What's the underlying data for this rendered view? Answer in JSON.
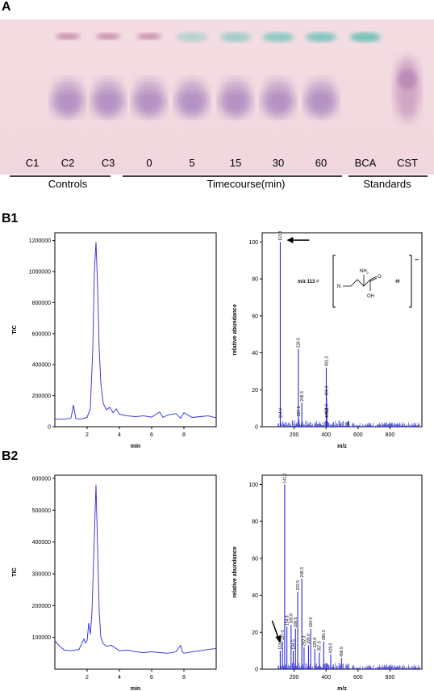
{
  "figure": {
    "panel_a": {
      "label": "A",
      "lanes": [
        "C1",
        "C2",
        "C3",
        "0",
        "5",
        "15",
        "30",
        "60",
        "BCA",
        "CST"
      ],
      "groups": [
        "Controls",
        "Timecourse(min)",
        "Standards"
      ]
    },
    "panel_b1": {
      "label": "B1"
    },
    "panel_b2": {
      "label": "B2"
    }
  },
  "chart_data": [
    {
      "type": "line",
      "panel": "B1",
      "xlabel": "min",
      "ylabel": "TIC",
      "xlim": [
        0,
        10
      ],
      "ylim": [
        0,
        1250000
      ],
      "xticks": [
        "2",
        "4",
        "6",
        "8"
      ],
      "yticks": [
        "0",
        "200000",
        "400000",
        "600000",
        "800000",
        "1000000",
        "1200000"
      ],
      "x": [
        0,
        0.5,
        1.0,
        1.15,
        1.3,
        1.6,
        2.0,
        2.2,
        2.35,
        2.45,
        2.55,
        2.65,
        2.75,
        2.85,
        3.0,
        3.2,
        3.4,
        3.6,
        3.8,
        4.0,
        4.5,
        5.0,
        5.5,
        6.0,
        6.5,
        6.7,
        7.0,
        7.5,
        7.8,
        8.0,
        8.5,
        9.0,
        9.5,
        10.0
      ],
      "y": [
        50000,
        48000,
        55000,
        140000,
        52000,
        50000,
        60000,
        120000,
        500000,
        1000000,
        1190000,
        900000,
        500000,
        280000,
        150000,
        110000,
        125000,
        90000,
        115000,
        80000,
        70000,
        65000,
        70000,
        62000,
        95000,
        60000,
        75000,
        85000,
        55000,
        90000,
        60000,
        65000,
        70000,
        58000
      ]
    },
    {
      "type": "bar",
      "panel": "B1",
      "xlabel": "m/z",
      "ylabel": "relative abundance",
      "xlim": [
        0,
        1000
      ],
      "ylim": [
        0,
        105
      ],
      "xticks": [
        "200",
        "400",
        "600",
        "800"
      ],
      "yticks": [
        "0",
        "20",
        "40",
        "60",
        "80",
        "100"
      ],
      "peaks": [
        {
          "mz": 113.3,
          "value": 100,
          "label": "113.3"
        },
        {
          "mz": 114.0,
          "value": 4,
          "label": "114.0"
        },
        {
          "mz": 226.5,
          "value": 42,
          "label": "226.5"
        },
        {
          "mz": 227.5,
          "value": 5,
          "label": "227.5"
        },
        {
          "mz": 248.3,
          "value": 13,
          "label": "248.3"
        },
        {
          "mz": 401.3,
          "value": 32,
          "label": "401.3"
        },
        {
          "mz": 402.3,
          "value": 6,
          "label": "402.3"
        },
        {
          "mz": 403.3,
          "value": 16,
          "label": "403.3"
        },
        {
          "mz": 405.3,
          "value": 4,
          "label": "405.3"
        },
        {
          "mz": 540,
          "value": 3,
          "label": ""
        }
      ],
      "annotation": {
        "text": "m/z 113 =",
        "formula_h": "-H",
        "n_label": "N",
        "nh2_label": "NH",
        "nh2_sub": "2",
        "oh_label": "OH",
        "o_label": "O",
        "charge": "–"
      }
    },
    {
      "type": "line",
      "panel": "B2",
      "xlabel": "min",
      "ylabel": "TIC",
      "xlim": [
        0,
        10
      ],
      "ylim": [
        0,
        610000
      ],
      "xticks": [
        "2",
        "4",
        "6",
        "8"
      ],
      "yticks": [
        "100000",
        "200000",
        "300000",
        "400000",
        "500000",
        "600000"
      ],
      "x": [
        0,
        0.3,
        0.6,
        1.0,
        1.5,
        1.8,
        1.9,
        2.0,
        2.1,
        2.2,
        2.3,
        2.45,
        2.55,
        2.65,
        2.75,
        2.85,
        3.0,
        3.2,
        3.5,
        4.0,
        4.5,
        5.0,
        5.5,
        6.0,
        6.5,
        7.0,
        7.5,
        7.8,
        7.9,
        8.0,
        8.5,
        9.0,
        9.5,
        10.0
      ],
      "y": [
        90000,
        72000,
        60000,
        58000,
        62000,
        95000,
        82000,
        90000,
        145000,
        110000,
        180000,
        420000,
        580000,
        380000,
        180000,
        100000,
        80000,
        72000,
        75000,
        58000,
        60000,
        55000,
        52000,
        55000,
        52000,
        50000,
        55000,
        75000,
        55000,
        50000,
        55000,
        58000,
        62000,
        65000
      ]
    },
    {
      "type": "bar",
      "panel": "B2",
      "xlabel": "m/z",
      "ylabel": "relative abundance",
      "xlim": [
        0,
        1000
      ],
      "ylim": [
        0,
        105
      ],
      "xticks": [
        "200",
        "400",
        "600",
        "800"
      ],
      "yticks": [
        "0",
        "20",
        "40",
        "60",
        "80",
        "100"
      ],
      "peaks": [
        {
          "mz": 113.0,
          "value": 10,
          "label": "113.0"
        },
        {
          "mz": 127.0,
          "value": 15,
          "label": "127.0"
        },
        {
          "mz": 141.0,
          "value": 100,
          "label": "141.0"
        },
        {
          "mz": 154.8,
          "value": 23,
          "label": "154.8"
        },
        {
          "mz": 180.8,
          "value": 24,
          "label": "180.8"
        },
        {
          "mz": 194.5,
          "value": 10,
          "label": "194.5"
        },
        {
          "mz": 208.5,
          "value": 22,
          "label": "208.5"
        },
        {
          "mz": 222.5,
          "value": 42,
          "label": "222.5"
        },
        {
          "mz": 248.3,
          "value": 49,
          "label": "248.3"
        },
        {
          "mz": 262.3,
          "value": 12,
          "label": "262.3"
        },
        {
          "mz": 290.0,
          "value": 13,
          "label": "290.0"
        },
        {
          "mz": 304.0,
          "value": 22,
          "label": "304.0"
        },
        {
          "mz": 329.8,
          "value": 11,
          "label": "329.8"
        },
        {
          "mz": 357.5,
          "value": 9,
          "label": "357.5"
        },
        {
          "mz": 385.3,
          "value": 15,
          "label": "385.3"
        },
        {
          "mz": 429.0,
          "value": 8,
          "label": "429.0"
        },
        {
          "mz": 496.5,
          "value": 6,
          "label": "496.5"
        }
      ]
    }
  ]
}
